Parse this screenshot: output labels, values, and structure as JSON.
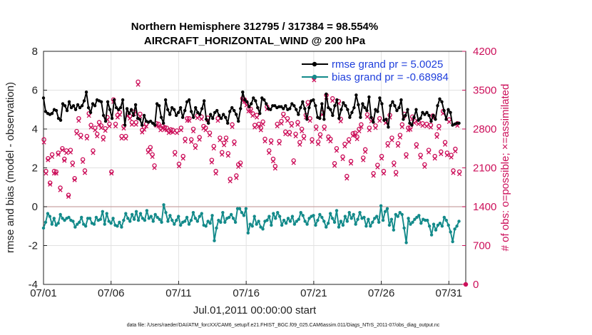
{
  "chart_data": {
    "type": "line",
    "title": "Northern Hemisphere 312795 / 317384 = 98.554%",
    "subtitle": "AIRCRAFT_HORIZONTAL_WIND @ 200 hPa",
    "xlabel": "Jul.01,2011 00:00:00 start",
    "ylabel_left": "rmse and bias (model - observation)",
    "ylabel_right": "# of obs: o=possible; ×=assimilated",
    "footnote": "data file: /Users/raeder/DAI/ATM_forcXX/CAM6_setup/f.e21.FHIST_BGC.f09_025.CAM6assim.011/Diags_NTrS_2011-07/obs_diag_output.nc",
    "x_ticks": [
      "07/01",
      "07/06",
      "07/11",
      "07/16",
      "07/21",
      "07/26",
      "07/31"
    ],
    "x_tick_days": [
      0,
      5,
      10,
      15,
      20,
      25,
      30
    ],
    "xlim": [
      0,
      31.25
    ],
    "y_left_ticks": [
      "-4",
      "-2",
      "0",
      "2",
      "4",
      "6",
      "8"
    ],
    "y_left_values": [
      -4,
      -2,
      0,
      2,
      4,
      6,
      8
    ],
    "ylim_left": [
      -4,
      8
    ],
    "y_right_ticks": [
      "0",
      "700",
      "1400",
      "2100",
      "2800",
      "3500",
      "4200"
    ],
    "y_right_values": [
      0,
      700,
      1400,
      2100,
      2800,
      3500,
      4200
    ],
    "ylim_right": [
      0,
      4200
    ],
    "colors": {
      "rmse": "#000000",
      "bias": "#138a8a",
      "obs": "#cc0f5a",
      "zero_line": "#c9a3a3",
      "grid": "#e2e2e2",
      "legend_text": "#1f3fdc"
    },
    "series": [
      {
        "name": "rmse grand pr = 5.0025",
        "legend": "rmse grand pr = 5.0025",
        "axis": "left",
        "values": [
          5.6,
          4.9,
          4.8,
          4.75,
          4.8,
          5.0,
          4.95,
          4.55,
          4.45,
          5.3,
          5.2,
          4.95,
          5.4,
          5.1,
          5.2,
          5.0,
          5.25,
          5.1,
          5.2,
          5.45,
          5.9,
          5.1,
          4.85,
          5.3,
          5.2,
          5.5,
          5.45,
          5.4,
          4.7,
          4.4,
          5.4,
          5.0,
          4.55,
          5.5,
          5.1,
          5.0,
          5.1,
          5.5,
          4.2,
          5.05,
          4.8,
          5.0,
          4.7,
          5.25,
          4.55,
          4.5,
          4.2,
          4.7,
          4.4,
          4.35,
          4.4,
          4.3,
          4.2,
          5.3,
          5.2,
          4.6,
          4.3,
          5.5,
          5.0,
          4.75,
          5.1,
          5.0,
          4.7,
          4.85,
          5.1,
          4.6,
          4.95,
          5.4,
          5.5,
          4.9,
          4.6,
          5.1,
          4.85,
          4.75,
          5.05,
          5.45,
          4.5,
          4.3,
          4.75,
          4.55,
          4.85,
          4.95,
          4.7,
          4.55,
          4.75,
          4.6,
          4.3,
          4.9,
          5.1,
          4.95,
          4.75,
          4.4,
          5.05,
          5.9,
          5.5,
          5.4,
          5.15,
          5.3,
          5.6,
          5.45,
          5.1,
          4.8,
          5.6,
          5.5,
          5.3,
          5.05,
          5.0,
          5.2,
          5.2,
          5.1,
          5.15,
          5.15,
          5.05,
          5.2,
          5.0,
          5.05,
          5.3,
          5.2,
          5.0,
          4.75,
          5.1,
          5.4,
          5.05,
          4.5,
          5.1,
          5.45,
          5.5,
          5.2,
          4.6,
          4.55,
          5.3,
          4.5,
          5.8,
          5.1,
          5.0,
          4.7,
          5.2,
          5.5,
          4.55,
          5.0,
          5.35,
          5.2,
          5.0,
          4.6,
          4.85,
          5.1,
          5.75,
          5.25,
          4.6,
          5.3,
          5.1,
          4.95,
          5.65,
          4.6,
          4.35,
          5.0,
          4.9,
          5.6,
          5.3,
          4.45,
          4.5,
          4.1,
          5.2,
          5.4,
          5.2,
          4.95,
          5.1,
          5.5,
          4.5,
          4.7,
          5.0,
          4.3,
          4.2,
          4.6,
          5.0,
          4.45,
          4.55,
          4.85,
          4.75,
          4.85,
          4.7,
          4.4,
          4.7,
          4.5,
          5.2,
          5.55,
          5.4,
          4.95,
          4.5,
          5.0,
          4.85,
          4.2,
          4.25,
          4.3,
          4.3
        ]
      },
      {
        "name": "bias grand pr = -0.68984",
        "legend": "bias grand pr = -0.68984",
        "axis": "left",
        "values": [
          -1.1,
          -0.8,
          -0.35,
          -0.5,
          -0.9,
          -0.6,
          -0.95,
          -0.85,
          -0.4,
          -0.6,
          -0.7,
          -0.6,
          -0.55,
          -0.7,
          -0.75,
          -1.05,
          -0.9,
          -0.8,
          -0.55,
          -0.9,
          -1.0,
          -0.6,
          -0.6,
          -0.85,
          -0.9,
          -0.55,
          -0.7,
          -0.65,
          -0.25,
          -0.9,
          -0.35,
          -0.75,
          -0.85,
          -0.6,
          -0.95,
          -1.0,
          -0.8,
          -1.05,
          -0.7,
          -0.35,
          -0.6,
          -0.75,
          -0.4,
          -0.65,
          -0.25,
          -0.7,
          -0.35,
          -0.6,
          -0.7,
          -0.2,
          -0.6,
          -0.5,
          -0.75,
          -0.4,
          -0.55,
          -0.65,
          -0.8,
          0.1,
          -0.3,
          -0.75,
          -0.45,
          -0.7,
          -0.9,
          -0.7,
          -0.5,
          -0.95,
          -0.8,
          -0.75,
          -0.55,
          -0.9,
          -0.7,
          -0.3,
          -0.6,
          -0.75,
          -0.5,
          -0.35,
          -0.95,
          -1.0,
          -0.75,
          -0.85,
          -0.45,
          -1.75,
          -1.1,
          -0.7,
          -0.8,
          -0.3,
          -0.8,
          -0.6,
          -0.55,
          -0.4,
          -0.6,
          -0.8,
          -0.1,
          -0.1,
          -0.3,
          -0.45,
          -0.1,
          -1.35,
          -0.9,
          -1.0,
          -0.5,
          -0.9,
          -0.75,
          -1.05,
          -1.15,
          -0.75,
          -0.7,
          -0.5,
          -0.95,
          -0.35,
          -0.6,
          -0.3,
          -0.5,
          -0.95,
          -0.7,
          -0.85,
          -0.6,
          -0.75,
          -0.5,
          -0.9,
          -0.75,
          -0.65,
          -0.3,
          -0.45,
          -0.75,
          -0.9,
          -0.6,
          -0.5,
          -0.45,
          -0.95,
          -0.7,
          -0.4,
          -0.55,
          -0.75,
          -1.05,
          -0.85,
          -0.35,
          -0.6,
          -0.8,
          -0.2,
          -1.05,
          -0.75,
          -0.95,
          -0.5,
          -0.75,
          -0.3,
          -0.6,
          -0.4,
          -0.9,
          -0.65,
          -0.3,
          -0.6,
          -0.55,
          -1.0,
          -0.65,
          -1.0,
          -0.8,
          -0.6,
          -0.5,
          -0.8,
          0.05,
          -0.7,
          -0.25,
          -0.1,
          -0.95,
          -0.65,
          -1.2,
          -0.4,
          -0.5,
          -0.3,
          -0.4,
          -1.1,
          -1.85,
          -0.6,
          -0.9,
          -0.8,
          -0.65,
          -0.55,
          -0.45,
          -0.85,
          -0.65,
          -0.7,
          -0.7,
          -1.0,
          -1.45,
          -0.9,
          -1.2,
          -0.95,
          -0.85,
          -1.0,
          -0.55,
          -0.7,
          -0.95,
          -1.3,
          -1.8,
          -1.15,
          -1.0,
          -0.75
        ]
      },
      {
        "name": "obs possible",
        "axis": "right",
        "marker": "o",
        "values": [
          2610,
          2040,
          2270,
          1830,
          2340,
          2040,
          2030,
          2370,
          1740,
          2450,
          2260,
          2410,
          1610,
          2420,
          2190,
          1910,
          2760,
          2990,
          2690,
          2250,
          2050,
          2670,
          3080,
          2870,
          2410,
          2820,
          2710,
          2920,
          2860,
          2650,
          2810,
          3010,
          2890,
          2030,
          3330,
          2890,
          3050,
          3100,
          2670,
          2850,
          2670,
          3080,
          3030,
          2920,
          3110,
          2920,
          3650,
          3070,
          2780,
          2830,
          2890,
          2420,
          2470,
          2340,
          2140,
          2900,
          2890,
          2820,
          2850,
          2830,
          2820,
          2770,
          2790,
          2780,
          2380,
          2770,
          2170,
          2820,
          2310,
          2620,
          2990,
          2990,
          2610,
          2800,
          2500,
          3040,
          2650,
          3020,
          2850,
          2820,
          3000,
          2730,
          2240,
          2490,
          2040,
          2990,
          2640,
          2380,
          2550,
          2640,
          2360,
          1900,
          2880,
          2570,
          1960,
          2160,
          2190,
          3350,
          3330,
          3270,
          3160,
          3160,
          3080,
          2870,
          3050,
          2890,
          2820,
          2930,
          2620,
          3200,
          2410,
          2590,
          2260,
          2130,
          2890,
          2580,
          2940,
          3070,
          2750,
          2990,
          2740,
          2900,
          2230,
          2710,
          2920,
          2560,
          2800,
          2670,
          3050,
          3280,
          2990,
          2610,
          3720,
          2840,
          2570,
          2700,
          3100,
          2840,
          3410,
          2660,
          2620,
          3350,
          2180,
          2450,
          3300,
          2980,
          2300,
          2530,
          1950,
          2610,
          2220,
          2720,
          2730,
          2660,
          2800,
          2880,
          2280,
          2430,
          3060,
          2820,
          2980,
          2000,
          2860,
          2150,
          2990,
          2310,
          2040,
          2950,
          2540,
          3050,
          2640,
          2190,
          2020,
          2540,
          2690,
          2880,
          3070,
          2340,
          2820,
          2830,
          3020,
          2950,
          2520,
          2930,
          2330,
          2900,
          2160,
          2890,
          2420,
          2870,
          3040,
          2310,
          2700,
          2850,
          2390,
          3120,
          2560,
          2370,
          2970,
          2330,
          2050,
          2440,
          2900,
          2030
        ]
      },
      {
        "name": "obs assimilated",
        "axis": "right",
        "marker": "x",
        "values": [
          2560,
          2000,
          2240,
          1800,
          2300,
          2000,
          2000,
          2340,
          1700,
          2420,
          2230,
          2370,
          1580,
          2380,
          2150,
          1880,
          2720,
          2950,
          2650,
          2210,
          2010,
          2630,
          3040,
          2830,
          2370,
          2780,
          2670,
          2880,
          2820,
          2610,
          2770,
          2970,
          2850,
          2000,
          3290,
          2850,
          3010,
          3060,
          2630,
          2810,
          2630,
          3040,
          2990,
          2880,
          3070,
          2880,
          3600,
          3030,
          2740,
          2790,
          2850,
          2380,
          2430,
          2300,
          2100,
          2860,
          2850,
          2780,
          2810,
          2790,
          2780,
          2730,
          2750,
          2740,
          2340,
          2730,
          2130,
          2780,
          2270,
          2580,
          2950,
          2950,
          2570,
          2760,
          2460,
          3000,
          2610,
          2980,
          2810,
          2780,
          2960,
          2690,
          2200,
          2450,
          2000,
          2950,
          2600,
          2340,
          2510,
          2600,
          2320,
          1860,
          2840,
          2530,
          1920,
          2120,
          2150,
          3310,
          3290,
          3230,
          3120,
          3120,
          3040,
          2830,
          3010,
          2850,
          2780,
          2890,
          2580,
          3160,
          2370,
          2550,
          2220,
          2090,
          2850,
          2540,
          2900,
          3030,
          2710,
          2950,
          2700,
          2860,
          2190,
          2670,
          2880,
          2520,
          2760,
          2630,
          3010,
          3240,
          2950,
          2570,
          3680,
          2800,
          2530,
          2660,
          3060,
          2800,
          3370,
          2620,
          2580,
          3310,
          2140,
          2410,
          3260,
          2940,
          2260,
          2490,
          1910,
          2570,
          2180,
          2680,
          2690,
          2620,
          2760,
          2840,
          2240,
          2390,
          3020,
          2780,
          2940,
          1960,
          2820,
          2110,
          2950,
          2270,
          2000,
          2910,
          2500,
          3010,
          2600,
          2150,
          1980,
          2500,
          2650,
          2840,
          3030,
          2300,
          2780,
          2790,
          2980,
          2910,
          2480,
          2890,
          2290,
          2860,
          2120,
          2850,
          2380,
          2830,
          3000,
          2270,
          2660,
          2810,
          2350,
          3080,
          2520,
          2330,
          2930,
          2290,
          2010,
          2400,
          2860,
          1990
        ]
      }
    ]
  }
}
